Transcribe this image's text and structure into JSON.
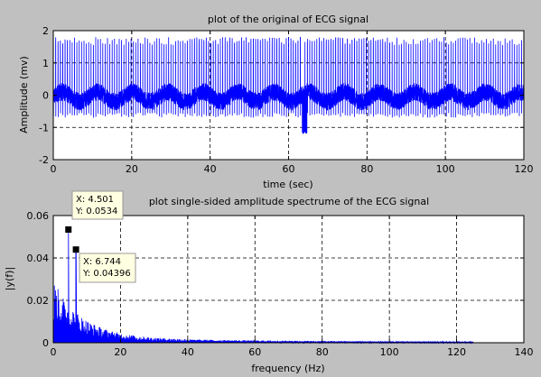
{
  "figure": {
    "background": "#c0c0c0",
    "line_color": "#0000ff",
    "grid_style": "dashed"
  },
  "chart_data": [
    {
      "type": "line",
      "title": "plot of the original of ECG signal",
      "xlabel": "time (sec)",
      "ylabel": "Amplitude (mv)",
      "xlim": [
        0,
        120
      ],
      "ylim": [
        -2,
        2
      ],
      "xticks": [
        0,
        20,
        40,
        60,
        80,
        100,
        120
      ],
      "yticks": [
        -2,
        -1,
        0,
        1,
        2
      ],
      "grid": true,
      "series_color": "#0000ff"
    },
    {
      "type": "line",
      "title": "plot single-sided amplitude spectrume of the ECG signal",
      "xlabel": "frequency (Hz)",
      "ylabel": "|y(f)|",
      "xlim": [
        0,
        140
      ],
      "ylim": [
        0,
        0.06
      ],
      "xticks": [
        0,
        20,
        40,
        60,
        80,
        100,
        120,
        140
      ],
      "yticks": [
        0,
        0.02,
        0.04,
        0.06
      ],
      "grid": true,
      "series_color": "#0000ff",
      "annotations": [
        {
          "x": 4.501,
          "y": 0.0534,
          "label_x": "X: 4.501",
          "label_y": "Y: 0.0534"
        },
        {
          "x": 6.744,
          "y": 0.04396,
          "label_x": "X: 6.744",
          "label_y": "Y: 0.04396"
        }
      ]
    }
  ]
}
